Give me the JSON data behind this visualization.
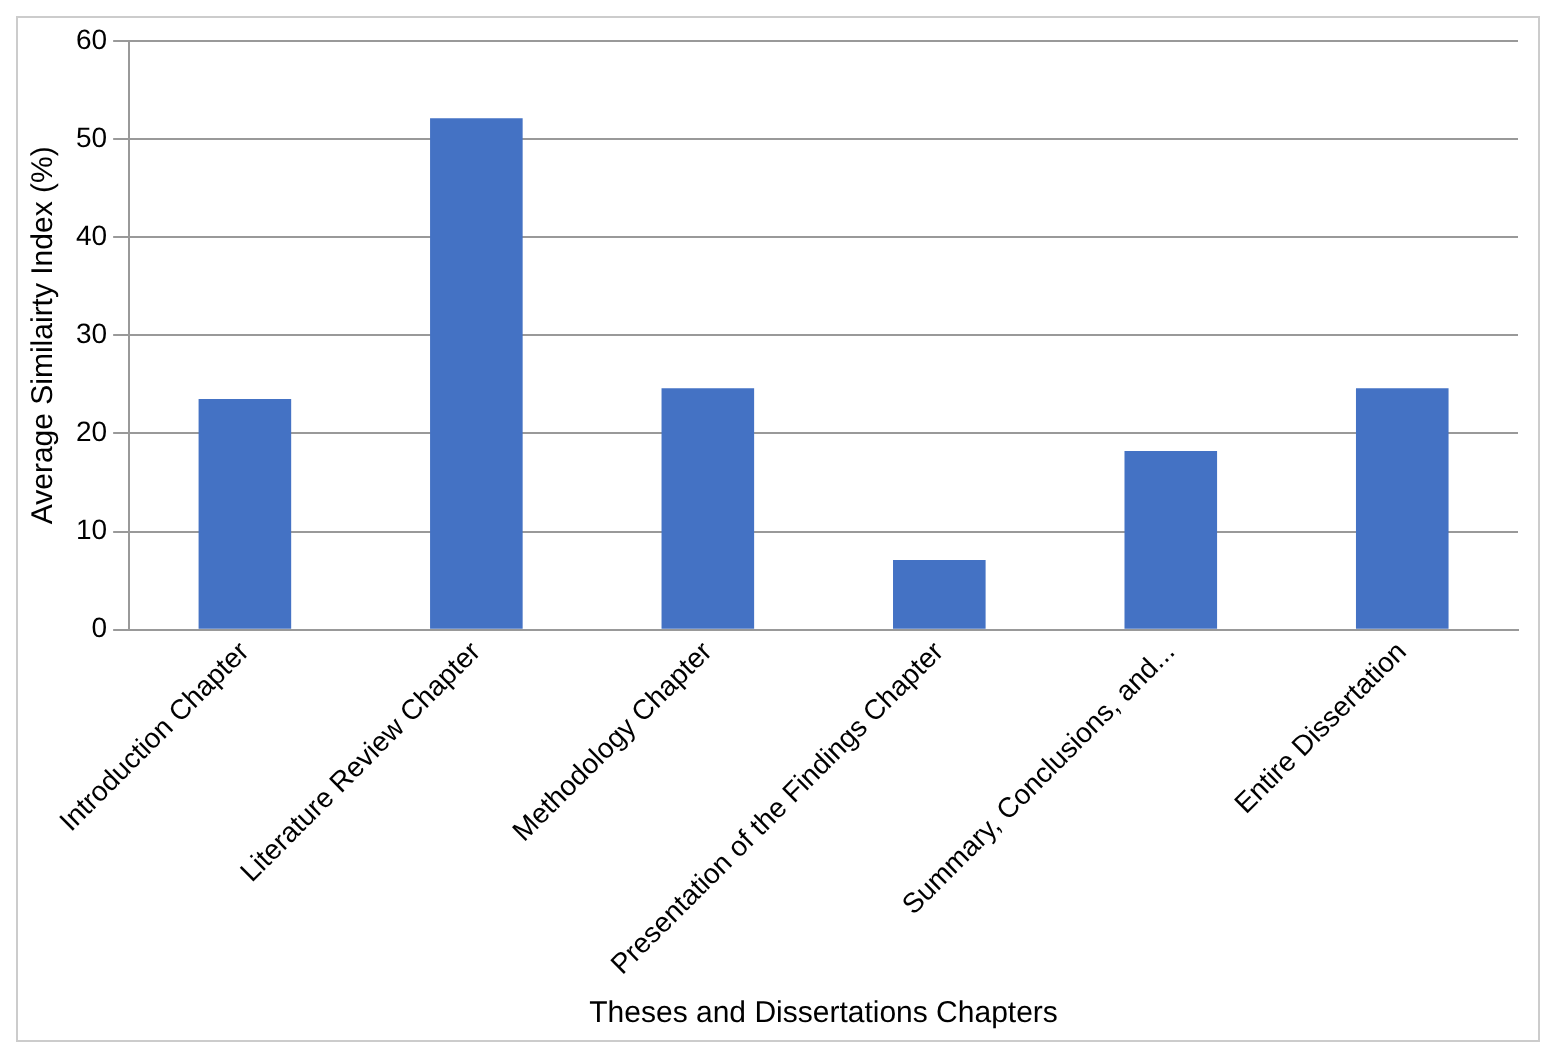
{
  "chart_data": {
    "type": "bar",
    "xlabel": "Theses and Dissertations Chapters",
    "ylabel": "Average Similairty Index (%)",
    "categories": [
      "Introduction Chapter",
      "Literature Review Chapter",
      "Methodology Chapter",
      "Presentation of the Findings Chapter",
      "Summary, Conclusions, and...",
      "Entire Dissertation"
    ],
    "values": [
      23.5,
      52.1,
      24.6,
      7.1,
      18.2,
      24.6
    ],
    "color": "#4472c4",
    "ylim": [
      0,
      60
    ],
    "yticks": [
      0,
      10,
      20,
      30,
      40,
      50,
      60
    ],
    "grid": "y",
    "legend": false
  }
}
